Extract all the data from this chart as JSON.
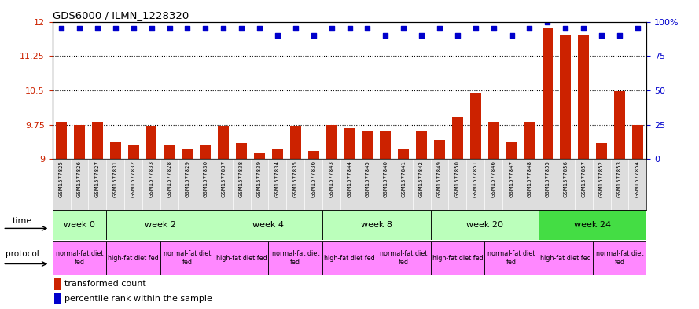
{
  "title": "GDS6000 / ILMN_1228320",
  "samples": [
    "GSM1577825",
    "GSM1577826",
    "GSM1577827",
    "GSM1577831",
    "GSM1577832",
    "GSM1577833",
    "GSM1577828",
    "GSM1577829",
    "GSM1577830",
    "GSM1577837",
    "GSM1577838",
    "GSM1577839",
    "GSM1577834",
    "GSM1577835",
    "GSM1577836",
    "GSM1577843",
    "GSM1577844",
    "GSM1577845",
    "GSM1577840",
    "GSM1577841",
    "GSM1577842",
    "GSM1577849",
    "GSM1577850",
    "GSM1577851",
    "GSM1577846",
    "GSM1577847",
    "GSM1577848",
    "GSM1577855",
    "GSM1577856",
    "GSM1577857",
    "GSM1577852",
    "GSM1577853",
    "GSM1577854"
  ],
  "bar_values": [
    9.82,
    9.75,
    9.82,
    9.38,
    9.32,
    9.72,
    9.32,
    9.22,
    9.32,
    9.72,
    9.35,
    9.12,
    9.22,
    9.72,
    9.18,
    9.75,
    9.68,
    9.62,
    9.62,
    9.22,
    9.62,
    9.42,
    9.92,
    10.45,
    9.82,
    9.38,
    9.82,
    11.85,
    11.72,
    11.72,
    9.35,
    10.48,
    9.75
  ],
  "percentile_values": [
    95,
    95,
    95,
    95,
    95,
    95,
    95,
    95,
    95,
    95,
    95,
    95,
    90,
    95,
    90,
    95,
    95,
    95,
    90,
    95,
    90,
    95,
    90,
    95,
    95,
    90,
    95,
    100,
    95,
    95,
    90,
    90,
    95
  ],
  "bar_color": "#cc2200",
  "dot_color": "#0000cc",
  "ymin": 9.0,
  "ymax": 12.0,
  "yticks": [
    9.0,
    9.75,
    10.5,
    11.25,
    12.0
  ],
  "ytick_labels": [
    "9",
    "9.75",
    "10.5",
    "11.25",
    "12"
  ],
  "y2ticks": [
    0,
    25,
    50,
    75,
    100
  ],
  "y2tick_labels": [
    "0",
    "25",
    "50",
    "75",
    "100%"
  ],
  "dotted_lines": [
    9.75,
    10.5,
    11.25
  ],
  "time_groups": [
    {
      "label": "week 0",
      "start": 0,
      "end": 3,
      "color": "#bbffbb"
    },
    {
      "label": "week 2",
      "start": 3,
      "end": 9,
      "color": "#bbffbb"
    },
    {
      "label": "week 4",
      "start": 9,
      "end": 15,
      "color": "#bbffbb"
    },
    {
      "label": "week 8",
      "start": 15,
      "end": 21,
      "color": "#bbffbb"
    },
    {
      "label": "week 20",
      "start": 21,
      "end": 27,
      "color": "#bbffbb"
    },
    {
      "label": "week 24",
      "start": 27,
      "end": 33,
      "color": "#44dd44"
    }
  ],
  "protocol_groups": [
    {
      "label": "normal-fat diet\nfed",
      "start": 0,
      "end": 3
    },
    {
      "label": "high-fat diet fed",
      "start": 3,
      "end": 6
    },
    {
      "label": "normal-fat diet\nfed",
      "start": 6,
      "end": 9
    },
    {
      "label": "high-fat diet fed",
      "start": 9,
      "end": 12
    },
    {
      "label": "normal-fat diet\nfed",
      "start": 12,
      "end": 15
    },
    {
      "label": "high-fat diet fed",
      "start": 15,
      "end": 18
    },
    {
      "label": "normal-fat diet\nfed",
      "start": 18,
      "end": 21
    },
    {
      "label": "high-fat diet fed",
      "start": 21,
      "end": 24
    },
    {
      "label": "normal-fat diet\nfed",
      "start": 24,
      "end": 27
    },
    {
      "label": "high-fat diet fed",
      "start": 27,
      "end": 30
    },
    {
      "label": "normal-fat diet\nfed",
      "start": 30,
      "end": 33
    }
  ],
  "proto_color": "#ff88ff",
  "legend_bar_label": "transformed count",
  "legend_dot_label": "percentile rank within the sample",
  "label_time": "time",
  "label_protocol": "protocol",
  "sample_label_bg": "#dddddd"
}
